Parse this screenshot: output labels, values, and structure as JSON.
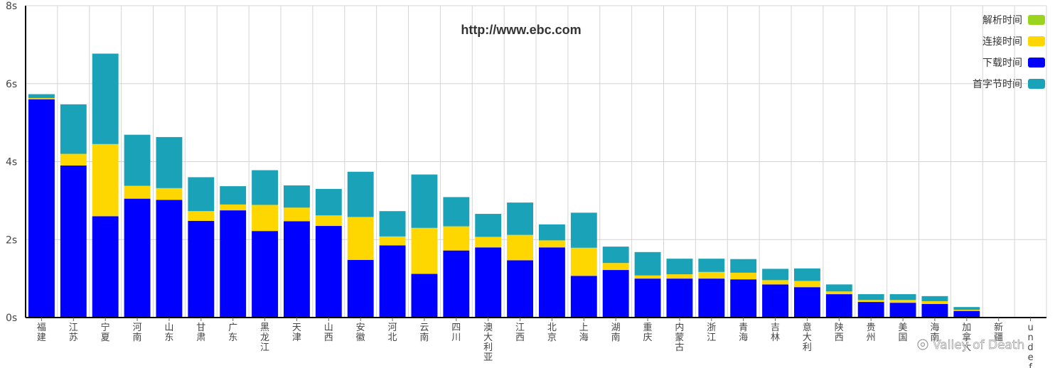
{
  "chart_data": {
    "type": "bar",
    "stacked": true,
    "title": "http://www.ebc.com",
    "ylim": [
      0,
      8
    ],
    "y_ticks": [
      0,
      2,
      4,
      6,
      8
    ],
    "y_tick_suffix": "s",
    "grid": true,
    "legend_position": "top-right",
    "categories": [
      "福建",
      "江苏",
      "宁夏",
      "河南",
      "山东",
      "甘肃",
      "广东",
      "黑龙江",
      "天津",
      "山西",
      "安徽",
      "河北",
      "云南",
      "四川",
      "澳大利亚",
      "江西",
      "北京",
      "上海",
      "湖南",
      "重庆",
      "内蒙古",
      "浙江",
      "青海",
      "吉林",
      "意大利",
      "陕西",
      "贵州",
      "美国",
      "海南",
      "加拿大",
      "新疆",
      "undef"
    ],
    "series": [
      {
        "name": "解析时间",
        "color": "#9bd41e",
        "values": [
          0,
          0,
          0,
          0,
          0,
          0,
          0,
          0,
          0,
          0,
          0,
          0,
          0,
          0,
          0,
          0,
          0,
          0,
          0,
          0,
          0,
          0,
          0,
          0,
          0,
          0,
          0,
          0,
          0,
          0,
          0,
          0
        ]
      },
      {
        "name": "下载时间",
        "color": "#0000ff",
        "values": [
          5.6,
          3.9,
          2.6,
          3.05,
          3.02,
          2.48,
          2.75,
          2.22,
          2.47,
          2.35,
          1.48,
          1.85,
          1.12,
          1.72,
          1.8,
          1.47,
          1.8,
          1.07,
          1.22,
          1.0,
          1.0,
          1.0,
          0.98,
          0.85,
          0.78,
          0.6,
          0.4,
          0.38,
          0.35,
          0.17,
          0,
          0
        ]
      },
      {
        "name": "连接时间",
        "color": "#ffd700",
        "values": [
          0.03,
          0.3,
          1.85,
          0.33,
          0.3,
          0.25,
          0.15,
          0.67,
          0.35,
          0.27,
          1.1,
          0.23,
          1.18,
          0.62,
          0.27,
          0.65,
          0.18,
          0.72,
          0.18,
          0.08,
          0.11,
          0.17,
          0.17,
          0.11,
          0.16,
          0.07,
          0.05,
          0.07,
          0.07,
          0.03,
          0,
          0
        ]
      },
      {
        "name": "首字节时间",
        "color": "#1aa3b8",
        "values": [
          0.1,
          1.27,
          2.32,
          1.31,
          1.31,
          0.87,
          0.47,
          0.89,
          0.57,
          0.68,
          1.16,
          0.65,
          1.37,
          0.75,
          0.59,
          0.83,
          0.41,
          0.9,
          0.42,
          0.6,
          0.4,
          0.34,
          0.35,
          0.29,
          0.32,
          0.18,
          0.15,
          0.15,
          0.13,
          0.07,
          0,
          0
        ]
      }
    ],
    "legend_order": [
      "解析时间",
      "连接时间",
      "下载时间",
      "首字节时间"
    ]
  },
  "watermark": "Valley of Death"
}
